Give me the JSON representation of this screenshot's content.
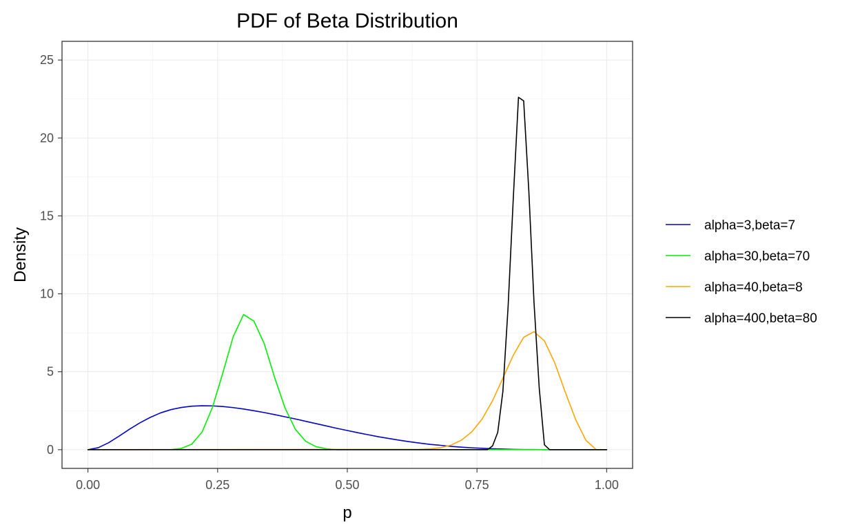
{
  "chart_data": {
    "type": "line",
    "title": "PDF of Beta Distribution",
    "xlabel": "p",
    "ylabel": "Density",
    "xlim": [
      -0.05,
      1.05
    ],
    "ylim": [
      -1.2,
      26.2
    ],
    "x_ticks": [
      0,
      0.25,
      0.5,
      0.75,
      1
    ],
    "x_tick_labels": [
      "0.00",
      "0.25",
      "0.50",
      "0.75",
      "1.00"
    ],
    "y_ticks": [
      0,
      5,
      10,
      15,
      20,
      25
    ],
    "y_tick_labels": [
      "0",
      "5",
      "10",
      "15",
      "20",
      "25"
    ],
    "grid": true,
    "legend_position": "right",
    "series": [
      {
        "name": "alpha=3,beta=7",
        "color": "#0000CC",
        "x": [
          0,
          0.02,
          0.04,
          0.06,
          0.08,
          0.1,
          0.12,
          0.14,
          0.16,
          0.18,
          0.2,
          0.22,
          0.24,
          0.26,
          0.28,
          0.3,
          0.32,
          0.34,
          0.36,
          0.38,
          0.4,
          0.42,
          0.44,
          0.46,
          0.48,
          0.5,
          0.52,
          0.54,
          0.56,
          0.58,
          0.6,
          0.62,
          0.64,
          0.66,
          0.68,
          0.7,
          0.72,
          0.74,
          0.76,
          0.78,
          0.8,
          0.82,
          0.84,
          0.86,
          0.88,
          0.9,
          0.92,
          0.94,
          0.96,
          0.98,
          1
        ],
        "y": [
          0,
          0.13,
          0.45,
          0.87,
          1.31,
          1.72,
          2.07,
          2.36,
          2.57,
          2.71,
          2.79,
          2.82,
          2.81,
          2.77,
          2.7,
          2.61,
          2.5,
          2.38,
          2.25,
          2.11,
          1.97,
          1.82,
          1.67,
          1.52,
          1.37,
          1.23,
          1.09,
          0.96,
          0.83,
          0.72,
          0.61,
          0.51,
          0.42,
          0.34,
          0.28,
          0.21,
          0.16,
          0.12,
          0.09,
          0.06,
          0.04,
          0.02,
          0.01,
          0.01,
          0,
          0,
          0,
          0,
          0,
          0,
          0
        ]
      },
      {
        "name": "alpha=30,beta=70",
        "color": "#00EE00",
        "x": [
          0,
          0.16,
          0.18,
          0.2,
          0.22,
          0.24,
          0.26,
          0.28,
          0.3,
          0.32,
          0.34,
          0.36,
          0.38,
          0.4,
          0.42,
          0.44,
          0.46,
          0.48,
          1
        ],
        "y": [
          0,
          0.01,
          0.08,
          0.35,
          1.13,
          2.71,
          4.92,
          7.25,
          8.67,
          8.25,
          6.79,
          4.62,
          2.67,
          1.3,
          0.53,
          0.19,
          0.06,
          0,
          0
        ]
      },
      {
        "name": "alpha=40,beta=8",
        "color": "#FFA500",
        "x": [
          0,
          0.64,
          0.66,
          0.68,
          0.7,
          0.72,
          0.74,
          0.76,
          0.78,
          0.8,
          0.82,
          0.84,
          0.86,
          0.88,
          0.9,
          0.92,
          0.94,
          0.96,
          0.98,
          1
        ],
        "y": [
          0,
          0.02,
          0.05,
          0.13,
          0.29,
          0.61,
          1.14,
          1.97,
          3.14,
          4.59,
          6.06,
          7.21,
          7.57,
          6.98,
          5.57,
          3.71,
          1.95,
          0.6,
          0,
          0
        ]
      },
      {
        "name": "alpha=400,beta=80",
        "color": "#000000",
        "x": [
          0,
          0.77,
          0.78,
          0.79,
          0.8,
          0.81,
          0.82,
          0.83,
          0.84,
          0.85,
          0.86,
          0.87,
          0.88,
          0.89,
          0.9,
          1
        ],
        "y": [
          0,
          0,
          0.24,
          1.11,
          3.76,
          9.18,
          16.13,
          22.61,
          22.38,
          16.57,
          9.41,
          3.96,
          0.31,
          0,
          0,
          0
        ]
      }
    ]
  }
}
